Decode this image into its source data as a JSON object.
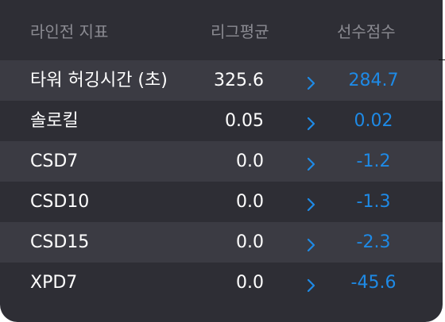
{
  "table": {
    "headers": {
      "metric": "라인전 지표",
      "league_avg": "리그평균",
      "player_score": "선수점수"
    },
    "rows": [
      {
        "metric": "타워 허깅시간 (초)",
        "league_avg": "325.6",
        "player_score": "284.7"
      },
      {
        "metric": "솔로킬",
        "league_avg": "0.05",
        "player_score": "0.02"
      },
      {
        "metric": "CSD7",
        "league_avg": "0.0",
        "player_score": "-1.2"
      },
      {
        "metric": "CSD10",
        "league_avg": "0.0",
        "player_score": "-1.3"
      },
      {
        "metric": "CSD15",
        "league_avg": "0.0",
        "player_score": "-2.3"
      },
      {
        "metric": "XPD7",
        "league_avg": "0.0",
        "player_score": "-45.6"
      }
    ]
  },
  "icons": {
    "row_arrow": "chevron-right-icon"
  },
  "colors": {
    "background": "#2e2e35",
    "row_alt": "#3b3b43",
    "header_text": "#8b8b92",
    "value_text": "#ffffff",
    "accent": "#1e8ae6"
  }
}
